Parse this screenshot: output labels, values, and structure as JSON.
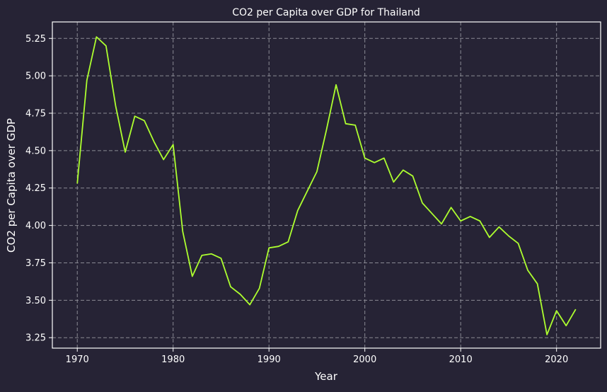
{
  "colors": {
    "background": "#262335",
    "line": "#adff2f",
    "grid": "#8a8a94",
    "text": "#ffffff"
  },
  "chart_data": {
    "type": "line",
    "title": "CO2 per Capita over GDP for Thailand",
    "xlabel": "Year",
    "ylabel": "CO2 per Capita over GDP",
    "xlim": [
      1967.4,
      1974.6
    ],
    "ylim": [
      3.18,
      5.36
    ],
    "xticks": [
      1970,
      1980,
      1990,
      2000,
      2010,
      2020
    ],
    "yticks": [
      3.25,
      3.5,
      3.75,
      4.0,
      4.25,
      4.5,
      4.75,
      5.0,
      5.25
    ],
    "ytick_labels": [
      "3.25",
      "3.50",
      "3.75",
      "4.00",
      "4.25",
      "4.50",
      "4.75",
      "5.00",
      "5.25"
    ],
    "grid": true,
    "series": [
      {
        "x": [
          1970,
          1971,
          1972,
          1973,
          1974,
          1975,
          1976,
          1977,
          1978,
          1979,
          1980,
          1981,
          1982,
          1983,
          1984,
          1985,
          1986,
          1987,
          1988,
          1989,
          1990,
          1991,
          1992,
          1993,
          1994,
          1995,
          1996,
          1997,
          1998,
          1999,
          2000,
          2001,
          2002,
          2003,
          2004,
          2005,
          2006,
          2007,
          2008,
          2009,
          2010,
          2011,
          2012,
          2013,
          2014,
          2015,
          2016,
          2017,
          2018,
          2019,
          2020,
          2021,
          2022
        ],
        "values": [
          4.28,
          4.97,
          5.26,
          5.2,
          4.8,
          4.49,
          4.73,
          4.7,
          4.56,
          4.44,
          4.54,
          3.96,
          3.66,
          3.8,
          3.81,
          3.78,
          3.59,
          3.54,
          3.47,
          3.58,
          3.85,
          3.86,
          3.89,
          4.1,
          4.23,
          4.36,
          4.64,
          4.94,
          4.68,
          4.67,
          4.45,
          4.42,
          4.45,
          4.29,
          4.37,
          4.33,
          4.15,
          4.08,
          4.01,
          4.12,
          4.03,
          4.06,
          4.03,
          3.92,
          3.99,
          3.93,
          3.88,
          3.7,
          3.61,
          3.27,
          3.43,
          3.33,
          3.44
        ]
      }
    ]
  }
}
